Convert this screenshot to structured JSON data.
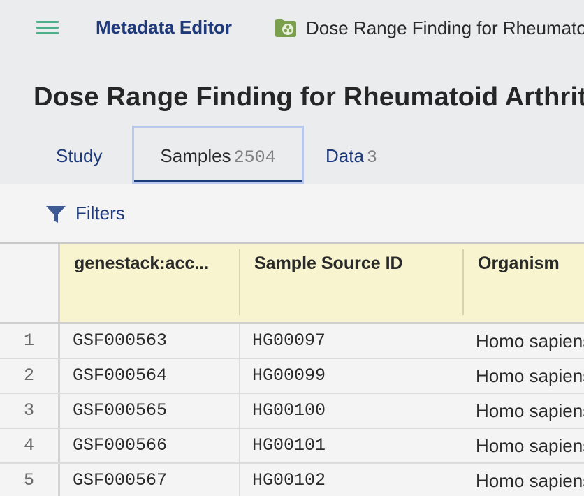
{
  "topbar": {
    "app_title": "Metadata Editor",
    "breadcrumb": "Dose Range Finding for Rheumatoid Arthritis",
    "icons": {
      "menu": "hamburger-menu-icon",
      "folder": "study-folder-icon"
    },
    "colors": {
      "menu": "#4caf8a",
      "folder": "#7aa04e",
      "brand": "#1f3a7a"
    }
  },
  "study": {
    "title": "Dose Range Finding for Rheumatoid Arthritis"
  },
  "tabs": [
    {
      "label": "Study",
      "count": ""
    },
    {
      "label": "Samples",
      "count": "2504"
    },
    {
      "label": "Data",
      "count": "3"
    }
  ],
  "filters": {
    "label": "Filters",
    "icon": "funnel-icon"
  },
  "table": {
    "columns": [
      "genestack:acc...",
      "Sample Source ID",
      "Organism"
    ],
    "rows": [
      {
        "num": "1",
        "accession": "GSF000563",
        "source_id": "HG00097",
        "organism": "Homo sapiens"
      },
      {
        "num": "2",
        "accession": "GSF000564",
        "source_id": "HG00099",
        "organism": "Homo sapiens"
      },
      {
        "num": "3",
        "accession": "GSF000565",
        "source_id": "HG00100",
        "organism": "Homo sapiens"
      },
      {
        "num": "4",
        "accession": "GSF000566",
        "source_id": "HG00101",
        "organism": "Homo sapiens"
      },
      {
        "num": "5",
        "accession": "GSF000567",
        "source_id": "HG00102",
        "organism": "Homo sapiens"
      }
    ]
  }
}
